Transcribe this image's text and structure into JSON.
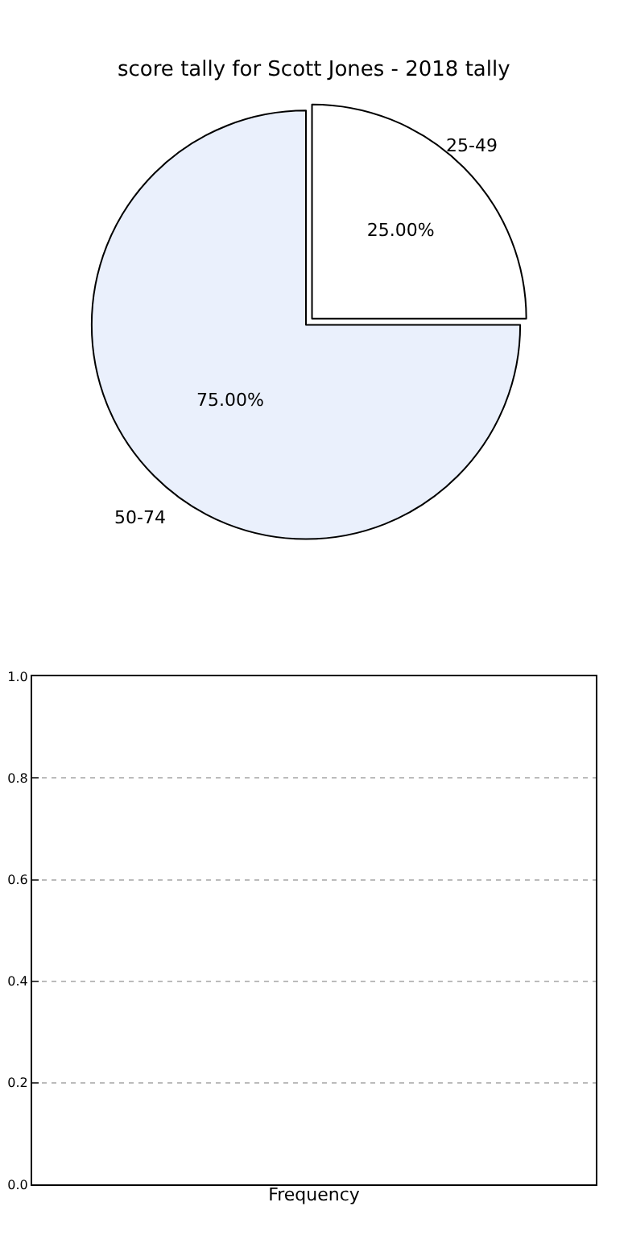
{
  "chart_data": [
    {
      "type": "pie",
      "title": "score tally for Scott Jones - 2018 tally",
      "categories": [
        "25-49",
        "50-74"
      ],
      "values": [
        25,
        75
      ],
      "colors": [
        "#ffffff",
        "#eaf0fc"
      ],
      "value_labels": [
        "25.00%",
        "75.00%"
      ]
    },
    {
      "type": "bar",
      "categories": [
        null
      ],
      "values": [
        null
      ],
      "xlabel": "Frequency",
      "ylim": [
        0,
        1.0
      ],
      "yticks": [
        {
          "value": 0,
          "label": "0.0"
        },
        {
          "value": 0.2,
          "label": "0.2"
        },
        {
          "value": 0.4,
          "label": "0.4"
        },
        {
          "value": 0.6,
          "label": "0.6"
        },
        {
          "value": 0.8,
          "label": "0.8"
        },
        {
          "value": 1.0,
          "label": "1.0"
        }
      ],
      "grid": "y",
      "tick_labels": "y"
    }
  ]
}
